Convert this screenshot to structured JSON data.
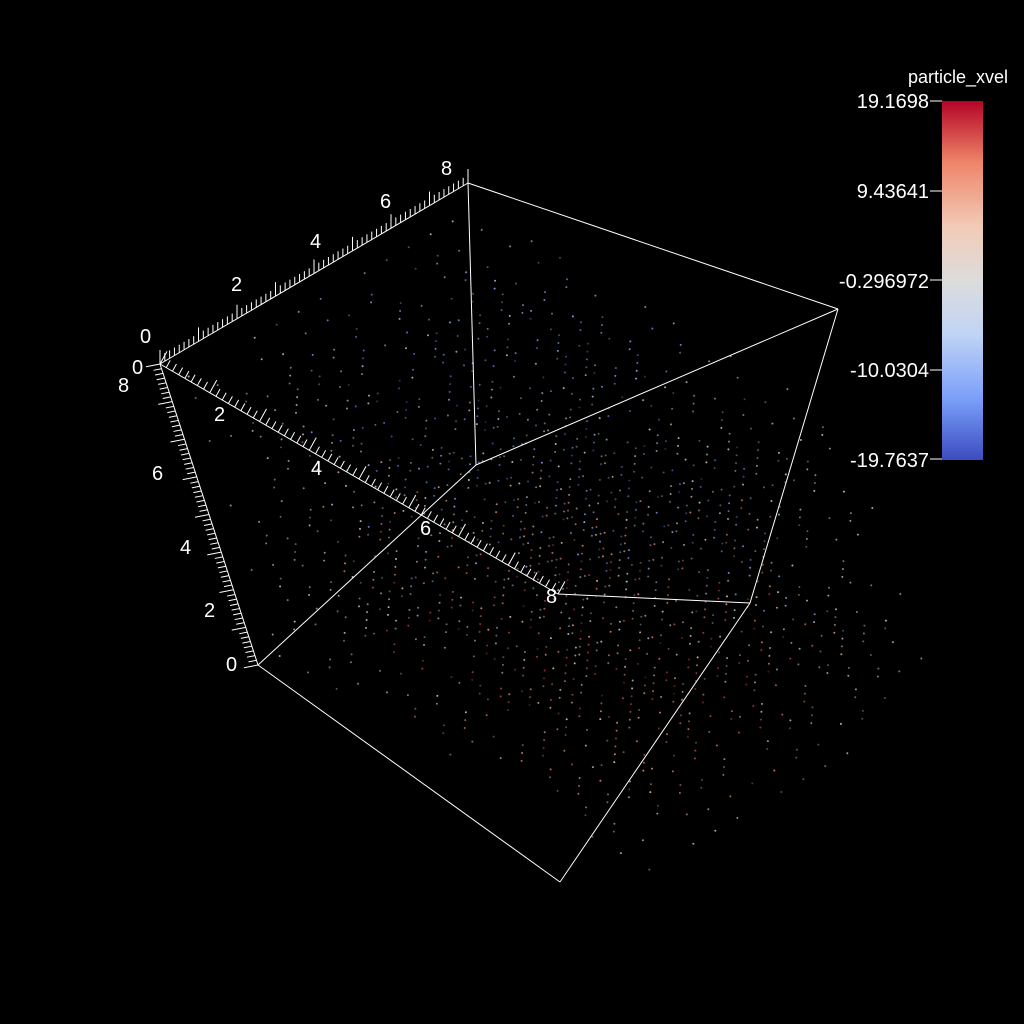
{
  "colorbar": {
    "title": "particle_xvel",
    "tick_labels": [
      "19.1698",
      "9.43641",
      "-0.296972",
      "-10.0304",
      "-19.7637"
    ],
    "max": 19.1698,
    "min": -19.7637,
    "colormap": [
      "#3b4cc0",
      "#7b9ff9",
      "#c0d4f5",
      "#dddcdc",
      "#f2cbb7",
      "#ee8468",
      "#b40426"
    ]
  },
  "axes": {
    "top_axis_ticks": [
      "0",
      "2",
      "4",
      "6",
      "8"
    ],
    "front_left_axis_ticks": [
      "0",
      "2",
      "4",
      "6",
      "8"
    ],
    "vertical_axis_ticks": [
      "0",
      "2",
      "4",
      "6",
      "8"
    ],
    "range": [
      0,
      8
    ]
  },
  "scene": {
    "background": "#000000",
    "frame_color": "#ffffff"
  }
}
